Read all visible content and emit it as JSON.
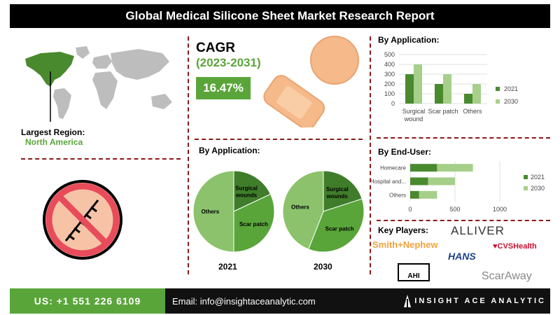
{
  "title": "Global Medical Silicone Sheet Market Research Report",
  "largest_region": {
    "label": "Largest Region:",
    "value": "North America"
  },
  "cagr": {
    "label": "CAGR",
    "period": "(2023-2031)",
    "value": "16.47%"
  },
  "colors": {
    "dark_green": "#4a8a2f",
    "light_green": "#a6cf8a",
    "accent_green": "#5aa53a",
    "pie_light": "#8bc26b",
    "pie_mid": "#5aa53a",
    "pie_dark": "#3f7d2a",
    "divider": "#8b1a1a"
  },
  "pie_section": {
    "heading": "By Application:"
  },
  "key_players": {
    "heading": "Key Players:",
    "logos": [
      "Smith+Nephew",
      "ALLIVER",
      "CVSHealth",
      "HANS",
      "AHI",
      "ScarAway"
    ]
  },
  "footer": {
    "phone": "US: +1 551 226 6109",
    "email": "Email: info@insightaceanalytic.com",
    "brand": "INSIGHT ACE ANALYTIC"
  },
  "chart_data": [
    {
      "type": "bar",
      "title": "By Application:",
      "categories": [
        "Surgical wound",
        "Scar patch",
        "Others"
      ],
      "series": [
        {
          "name": "2021",
          "values": [
            300,
            200,
            100
          ]
        },
        {
          "name": "2030",
          "values": [
            400,
            300,
            200
          ]
        }
      ],
      "ylim": [
        0,
        500
      ],
      "yticks": [
        "0",
        "100",
        "200",
        "300",
        "400",
        "500"
      ],
      "legend": "right"
    },
    {
      "type": "bar",
      "orientation": "horizontal",
      "title": "By End-User:",
      "categories": [
        "Homecare",
        "Hospital and...",
        "Others"
      ],
      "series": [
        {
          "name": "2021",
          "values": [
            300,
            200,
            100
          ]
        },
        {
          "name": "2030",
          "values": [
            400,
            300,
            200
          ]
        }
      ],
      "xlim": [
        0,
        1000
      ],
      "xticks": [
        "0",
        "500",
        "1000"
      ],
      "legend": "right"
    },
    {
      "type": "pie",
      "title": "2021",
      "labels": [
        "Surgical wounds",
        "Scar patch",
        "Others"
      ],
      "values": [
        18,
        32,
        50
      ]
    },
    {
      "type": "pie",
      "title": "2030",
      "labels": [
        "Surgical wounds",
        "Scar patch",
        "Others"
      ],
      "values": [
        20,
        36,
        44
      ]
    }
  ]
}
